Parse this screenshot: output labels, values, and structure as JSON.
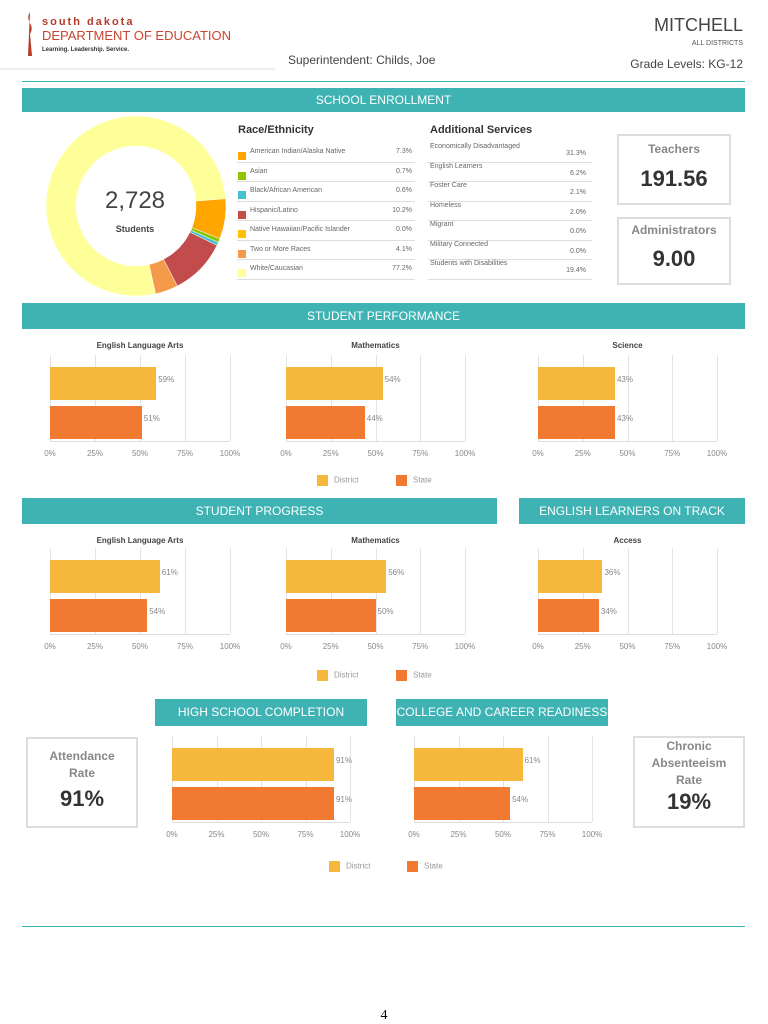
{
  "header": {
    "logo_line1": "south dakota",
    "logo_line2": "DEPARTMENT OF EDUCATION",
    "logo_tagline": "Learning. Leadership. Service.",
    "district": "MITCHELL",
    "scope": "ALL DISTRICTS",
    "superintendent": "Superintendent: Childs, Joe",
    "grade_levels": "Grade Levels: KG-12"
  },
  "colors": {
    "teal": "#3fb3b3",
    "district": "#f5b83d",
    "state": "#f07a32"
  },
  "enrollment": {
    "title": "SCHOOL ENROLLMENT",
    "total": "2,728",
    "total_label": "Students",
    "race_title": "Race/Ethnicity",
    "race": [
      {
        "label": "American Indian/Alaska Native",
        "value": "7.3%",
        "pct": 7.3,
        "color": "#ffa500"
      },
      {
        "label": "Asian",
        "value": "0.7%",
        "pct": 0.7,
        "color": "#8fc400"
      },
      {
        "label": "Black/African American",
        "value": "0.6%",
        "pct": 0.6,
        "color": "#45c0cc"
      },
      {
        "label": "Hispanic/Latino",
        "value": "10.2%",
        "pct": 10.2,
        "color": "#c24b4b"
      },
      {
        "label": "Native Hawaiian/Pacific Islander",
        "value": "0.0%",
        "pct": 0,
        "color": "#ffc000"
      },
      {
        "label": "Two or More Races",
        "value": "4.1%",
        "pct": 4.1,
        "color": "#f59a4b"
      },
      {
        "label": "White/Caucasian",
        "value": "77.2%",
        "pct": 77.2,
        "color": "#ffff99"
      }
    ],
    "services_title": "Additional Services",
    "services": [
      {
        "label": "Economically Disadvantaged",
        "value": "31.3%"
      },
      {
        "label": "English Learners",
        "value": "6.2%"
      },
      {
        "label": "Foster Care",
        "value": "2.1%"
      },
      {
        "label": "Homeless",
        "value": "2.0%"
      },
      {
        "label": "Migrant",
        "value": "0.0%"
      },
      {
        "label": "Military Connected",
        "value": "0.0%"
      },
      {
        "label": "Students with Disabilities",
        "value": "19.4%"
      }
    ],
    "teachers_label": "Teachers",
    "teachers": "191.56",
    "admins_label": "Administrators",
    "admins": "9.00"
  },
  "sections": {
    "performance": "STUDENT PERFORMANCE",
    "progress": "STUDENT PROGRESS",
    "el": "ENGLISH LEARNERS ON TRACK",
    "hsc": "HIGH SCHOOL COMPLETION",
    "ccr": "COLLEGE AND CAREER READINESS"
  },
  "legend": {
    "district": "District",
    "state": "State"
  },
  "attendance": {
    "label1": "Attendance",
    "label2": "Rate",
    "value": "91%"
  },
  "chronic": {
    "label1": "Chronic",
    "label2": "Absenteeism",
    "label3": "Rate",
    "value": "19%"
  },
  "page_number": "4",
  "chart_data": [
    {
      "type": "bar",
      "title": "English Language Arts",
      "group": "performance",
      "categories": [
        "District",
        "State"
      ],
      "values": [
        59,
        51
      ],
      "labels": [
        "59%",
        "51%"
      ],
      "ticks": [
        "0%",
        "25%",
        "50%",
        "75%",
        "100%"
      ],
      "xlim": [
        0,
        100
      ]
    },
    {
      "type": "bar",
      "title": "Mathematics",
      "group": "performance",
      "categories": [
        "District",
        "State"
      ],
      "values": [
        54,
        44
      ],
      "labels": [
        "54%",
        "44%"
      ],
      "ticks": [
        "0%",
        "25%",
        "50%",
        "75%",
        "100%"
      ],
      "xlim": [
        0,
        100
      ]
    },
    {
      "type": "bar",
      "title": "Science",
      "group": "performance",
      "categories": [
        "District",
        "State"
      ],
      "values": [
        43,
        43
      ],
      "labels": [
        "43%",
        "43%"
      ],
      "ticks": [
        "0%",
        "25%",
        "50%",
        "75%",
        "100%"
      ],
      "xlim": [
        0,
        100
      ]
    },
    {
      "type": "bar",
      "title": "English Language Arts",
      "group": "progress",
      "categories": [
        "District",
        "State"
      ],
      "values": [
        61,
        54
      ],
      "labels": [
        "61%",
        "54%"
      ],
      "ticks": [
        "0%",
        "25%",
        "50%",
        "75%",
        "100%"
      ],
      "xlim": [
        0,
        100
      ]
    },
    {
      "type": "bar",
      "title": "Mathematics",
      "group": "progress",
      "categories": [
        "District",
        "State"
      ],
      "values": [
        56,
        50
      ],
      "labels": [
        "56%",
        "50%"
      ],
      "ticks": [
        "0%",
        "25%",
        "50%",
        "75%",
        "100%"
      ],
      "xlim": [
        0,
        100
      ]
    },
    {
      "type": "bar",
      "title": "Access",
      "group": "el",
      "categories": [
        "District",
        "State"
      ],
      "values": [
        36,
        34
      ],
      "labels": [
        "36%",
        "34%"
      ],
      "ticks": [
        "0%",
        "25%",
        "50%",
        "75%",
        "100%"
      ],
      "xlim": [
        0,
        100
      ]
    },
    {
      "type": "bar",
      "title": "",
      "group": "hsc",
      "categories": [
        "District",
        "State"
      ],
      "values": [
        91,
        91
      ],
      "labels": [
        "91%",
        "91%"
      ],
      "ticks": [
        "0%",
        "25%",
        "50%",
        "75%",
        "100%"
      ],
      "xlim": [
        0,
        100
      ]
    },
    {
      "type": "bar",
      "title": "",
      "group": "ccr",
      "categories": [
        "District",
        "State"
      ],
      "values": [
        61,
        54
      ],
      "labels": [
        "61%",
        "54%"
      ],
      "ticks": [
        "0%",
        "25%",
        "50%",
        "75%",
        "100%"
      ],
      "xlim": [
        0,
        100
      ]
    }
  ]
}
